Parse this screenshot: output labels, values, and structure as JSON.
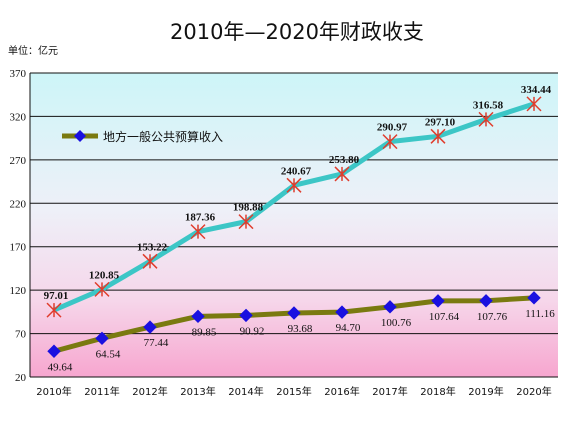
{
  "chart_data": {
    "type": "line",
    "title": "2010年—2020年财政收支",
    "unit_label": "单位：亿元",
    "categories": [
      "2010年",
      "2011年",
      "2012年",
      "2013年",
      "2014年",
      "2015年",
      "2016年",
      "2017年",
      "2018年",
      "2019年",
      "2020年"
    ],
    "ylim": [
      20,
      370
    ],
    "yticks": [
      "20",
      "70",
      "120",
      "170",
      "220",
      "270",
      "320",
      "370"
    ],
    "grid": true,
    "legend_position": "top-left",
    "series": [
      {
        "name": "",
        "color": "#3cc6c6",
        "marker": "asterisk",
        "marker_color": "#e03c2c",
        "values": [
          97.01,
          120.85,
          153.22,
          187.36,
          198.88,
          240.67,
          253.8,
          290.97,
          297.1,
          316.58,
          334.44
        ],
        "labels": [
          "97.01",
          "120.85",
          "153.22",
          "187.36",
          "198.88",
          "240.67",
          "253.80",
          "290.97",
          "297.10",
          "316.58",
          "334.44"
        ]
      },
      {
        "name": "地方一般公共预算收入",
        "color": "#7a7a10",
        "marker": "diamond",
        "marker_color": "#1a10e0",
        "values": [
          49.64,
          64.54,
          77.44,
          89.85,
          90.92,
          93.68,
          94.7,
          100.76,
          107.64,
          107.76,
          111.16
        ],
        "labels": [
          "49.64",
          "64.54",
          "77.44",
          "89.85",
          "90.92",
          "93.68",
          "94.70",
          "100.76",
          "107.64",
          "107.76",
          "111.16"
        ]
      }
    ]
  }
}
